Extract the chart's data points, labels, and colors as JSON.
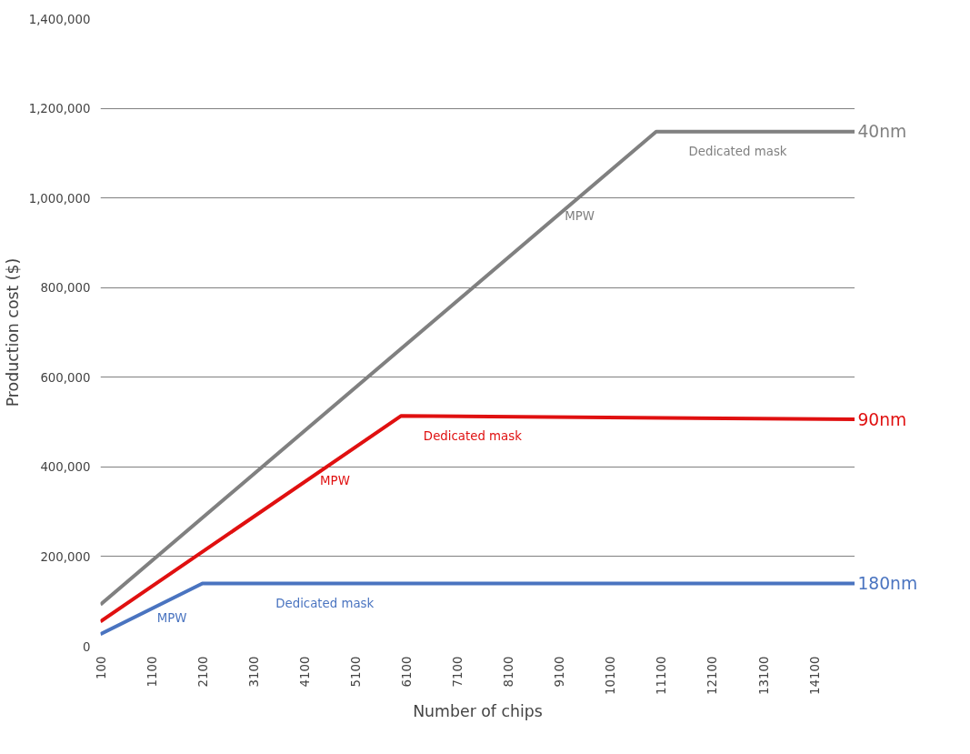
{
  "chart_data": {
    "type": "line",
    "xlabel": "Number of chips",
    "ylabel": "Production cost ($)",
    "xlim": [
      100,
      14900
    ],
    "xticks": [
      100,
      1100,
      2100,
      3100,
      4100,
      5100,
      6100,
      7100,
      8100,
      9100,
      10100,
      11100,
      12100,
      13100,
      14100
    ],
    "ylim": [
      0,
      1400000
    ],
    "yticks": [
      {
        "value": 0,
        "label": "0"
      },
      {
        "value": 200000,
        "label": "200,000"
      },
      {
        "value": 400000,
        "label": "400,000"
      },
      {
        "value": 600000,
        "label": "600,000"
      },
      {
        "value": 800000,
        "label": "800,000"
      },
      {
        "value": 1000000,
        "label": "1,000,000"
      },
      {
        "value": 1200000,
        "label": "1,200,000"
      },
      {
        "value": 1400000,
        "label": "1,400,000"
      }
    ],
    "grid": "y",
    "marker": "none",
    "line_style": "solid",
    "series": [
      {
        "name": "40nm",
        "color": "#808080",
        "x": [
          100,
          11000,
          14900
        ],
        "values": [
          93000,
          1148000,
          1148000
        ]
      },
      {
        "name": "90nm",
        "color": "#e01010",
        "x": [
          100,
          6000,
          14900
        ],
        "values": [
          55000,
          514000,
          506000
        ]
      },
      {
        "name": "180nm",
        "color": "#4a74c0",
        "x": [
          100,
          2100,
          14900
        ],
        "values": [
          27000,
          140000,
          140000
        ]
      }
    ],
    "annotations": [
      {
        "text": "Dedicated mask",
        "x": 12600,
        "y": 1148000
      },
      {
        "text": "MPW",
        "x": 9500,
        "y": 1003000
      },
      {
        "text": "Dedicated mask",
        "x": 7400,
        "y": 513000
      },
      {
        "text": "MPW",
        "x": 4700,
        "y": 413000
      },
      {
        "text": "MPW",
        "x": 1500,
        "y": 106000
      },
      {
        "text": "Dedicated mask",
        "x": 4500,
        "y": 140000
      }
    ]
  }
}
